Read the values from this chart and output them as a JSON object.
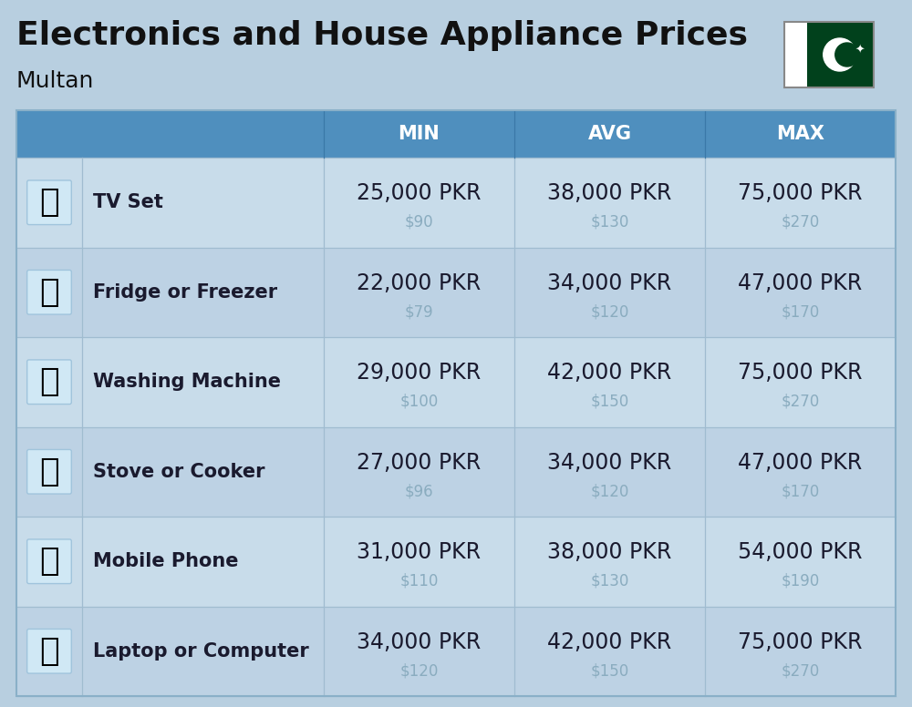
{
  "title": "Electronics and House Appliance Prices",
  "subtitle": "Multan",
  "background_color": "#b8cfe0",
  "header_color": "#4f8fbe",
  "header_text_color": "#ffffff",
  "row_bg_even": "#c8dcea",
  "row_bg_odd": "#bdd2e4",
  "sep_color": "#a0bcd0",
  "header_sep_color": "#3a78a8",
  "columns": [
    "MIN",
    "AVG",
    "MAX"
  ],
  "items": [
    {
      "name": "TV Set",
      "icon": "📺",
      "min_pkr": "25,000 PKR",
      "min_usd": "$90",
      "avg_pkr": "38,000 PKR",
      "avg_usd": "$130",
      "max_pkr": "75,000 PKR",
      "max_usd": "$270"
    },
    {
      "name": "Fridge or Freezer",
      "icon": "🏇",
      "min_pkr": "22,000 PKR",
      "min_usd": "$79",
      "avg_pkr": "34,000 PKR",
      "avg_usd": "$120",
      "max_pkr": "47,000 PKR",
      "max_usd": "$170"
    },
    {
      "name": "Washing Machine",
      "icon": "🧹",
      "min_pkr": "29,000 PKR",
      "min_usd": "$100",
      "avg_pkr": "42,000 PKR",
      "avg_usd": "$150",
      "max_pkr": "75,000 PKR",
      "max_usd": "$270"
    },
    {
      "name": "Stove or Cooker",
      "icon": "🔥",
      "min_pkr": "27,000 PKR",
      "min_usd": "$96",
      "avg_pkr": "34,000 PKR",
      "avg_usd": "$120",
      "max_pkr": "47,000 PKR",
      "max_usd": "$170"
    },
    {
      "name": "Mobile Phone",
      "icon": "📱",
      "min_pkr": "31,000 PKR",
      "min_usd": "$110",
      "avg_pkr": "38,000 PKR",
      "avg_usd": "$130",
      "max_pkr": "54,000 PKR",
      "max_usd": "$190"
    },
    {
      "name": "Laptop or Computer",
      "icon": "💻",
      "min_pkr": "34,000 PKR",
      "min_usd": "$120",
      "avg_pkr": "42,000 PKR",
      "avg_usd": "$150",
      "max_pkr": "75,000 PKR",
      "max_usd": "$270"
    }
  ],
  "title_fontsize": 26,
  "subtitle_fontsize": 18,
  "header_fontsize": 15,
  "item_name_fontsize": 15,
  "price_fontsize": 17,
  "usd_fontsize": 12,
  "icon_fontsize": 26,
  "usd_color": "#8aacbf",
  "name_color": "#1a1a2e",
  "price_color": "#1a1a2e"
}
